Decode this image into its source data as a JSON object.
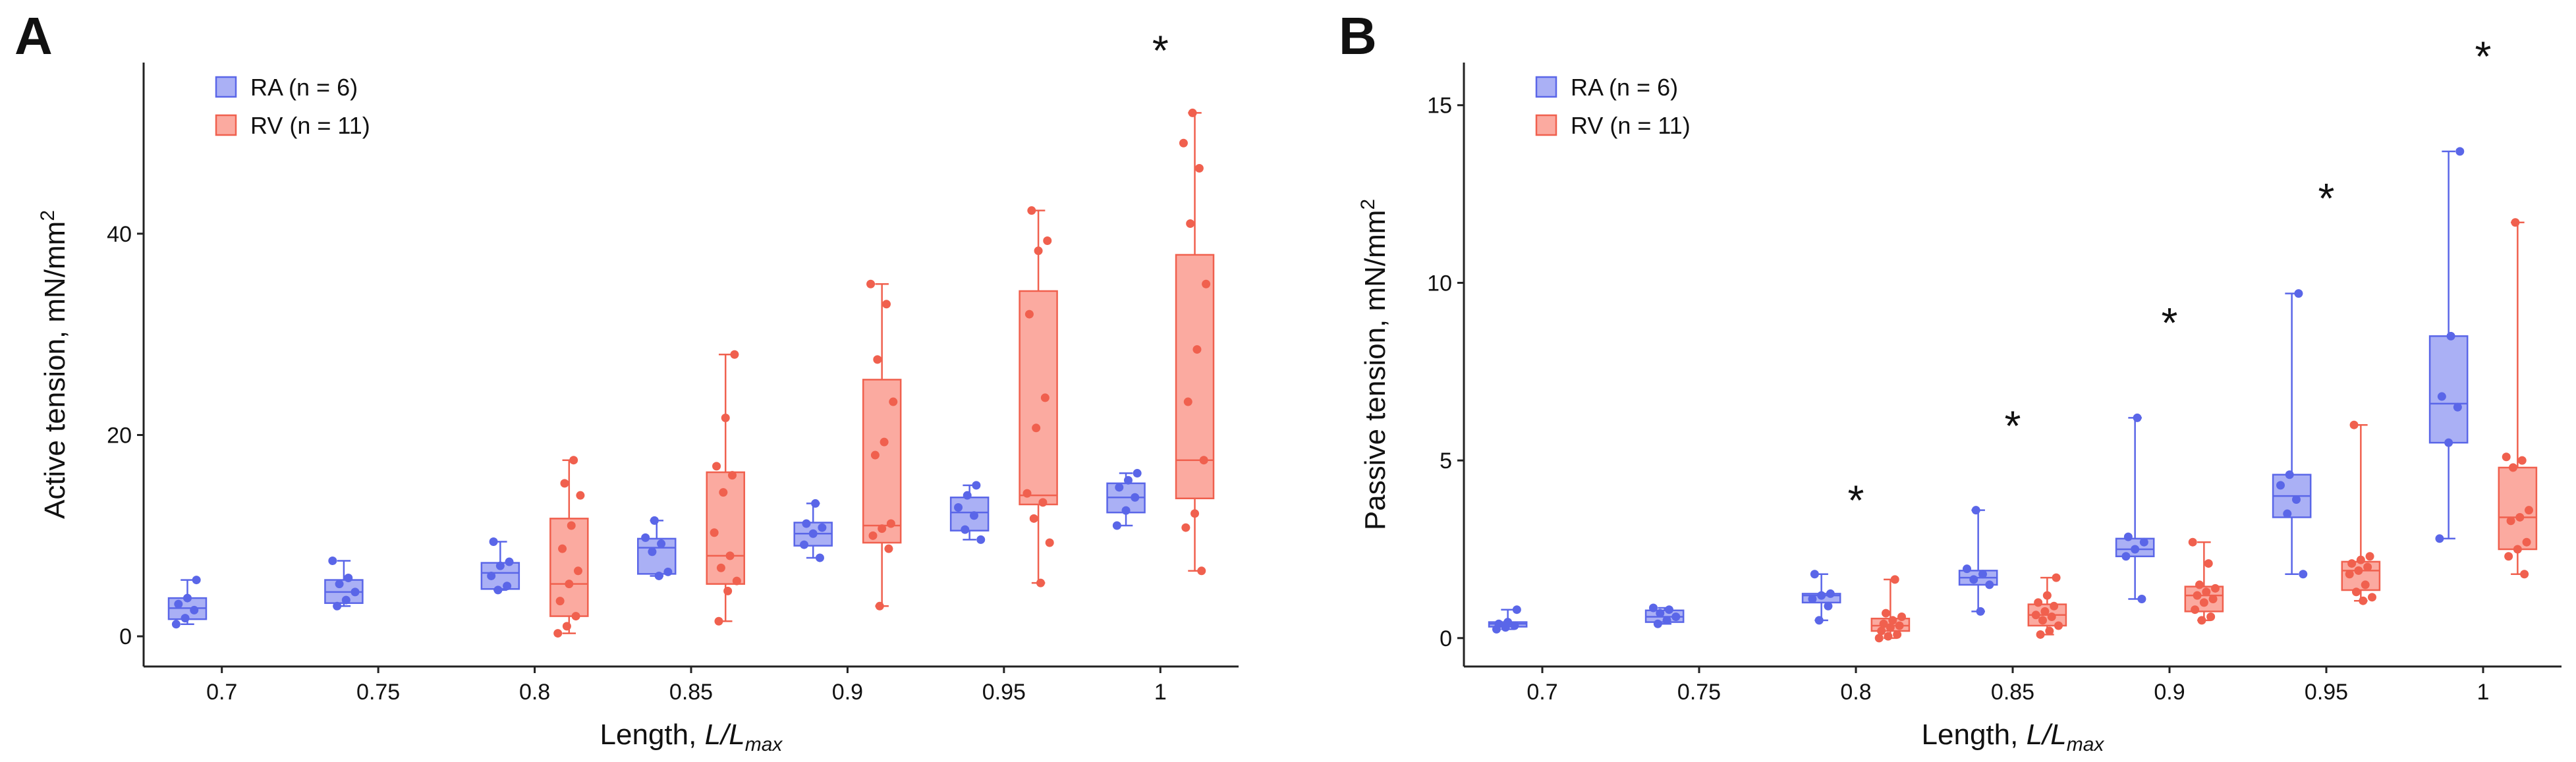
{
  "chart_data": [
    {
      "panel": "A",
      "type": "box",
      "ylabel": "Active tension, mN/mm",
      "ylabel_sup": "2",
      "xlabel": "Length, ",
      "xlabel_italic": "L/L",
      "xlabel_sub": "max",
      "ylim": [
        -3,
        57
      ],
      "yticks": [
        0,
        20,
        40
      ],
      "categories": [
        "0.7",
        "0.75",
        "0.8",
        "0.85",
        "0.9",
        "0.95",
        "1"
      ],
      "legend": [
        {
          "label": "RA (n = 6)",
          "fill": "#aab0f5",
          "stroke": "#5a66e8"
        },
        {
          "label": "RV (n = 11)",
          "fill": "#fbaaa0",
          "stroke": "#f0604e"
        }
      ],
      "significance": [
        {
          "category": "1",
          "label": "*",
          "y": 59
        }
      ],
      "series": [
        {
          "name": "RA (n = 6)",
          "boxes": [
            {
              "q1": 1.7,
              "med": 2.8,
              "q3": 3.8,
              "min": 1.2,
              "max": 5.6,
              "points": [
                1.2,
                1.8,
                2.6,
                3.2,
                3.8,
                5.6
              ]
            },
            {
              "q1": 3.3,
              "med": 4.4,
              "q3": 5.6,
              "min": 3.0,
              "max": 7.5,
              "points": [
                3.0,
                3.6,
                4.4,
                5.2,
                5.8,
                7.5
              ]
            },
            {
              "q1": 4.7,
              "med": 6.3,
              "q3": 7.3,
              "min": 4.6,
              "max": 9.4,
              "points": [
                4.6,
                5.0,
                6.0,
                7.0,
                7.4,
                9.4
              ]
            },
            {
              "q1": 6.2,
              "med": 8.8,
              "q3": 9.7,
              "min": 6.0,
              "max": 11.5,
              "points": [
                6.0,
                6.4,
                8.4,
                9.2,
                9.8,
                11.5
              ]
            },
            {
              "q1": 9.0,
              "med": 10.2,
              "q3": 11.3,
              "min": 7.8,
              "max": 13.2,
              "points": [
                7.8,
                9.1,
                10.2,
                10.8,
                11.2,
                13.2
              ]
            },
            {
              "q1": 10.5,
              "med": 12.3,
              "q3": 13.8,
              "min": 9.6,
              "max": 15.0,
              "points": [
                9.6,
                10.6,
                12.0,
                12.8,
                14.0,
                15.0
              ]
            },
            {
              "q1": 12.3,
              "med": 13.8,
              "q3": 15.2,
              "min": 11.0,
              "max": 16.2,
              "points": [
                11.0,
                12.5,
                13.8,
                14.8,
                15.5,
                16.2
              ]
            }
          ]
        },
        {
          "name": "RV (n = 11)",
          "boxes": [
            null,
            null,
            {
              "q1": 2.0,
              "med": 5.2,
              "q3": 11.7,
              "min": 0.3,
              "max": 17.5,
              "points": [
                0.3,
                1.0,
                2.0,
                3.5,
                5.2,
                6.5,
                8.7,
                11.0,
                14.0,
                15.2,
                17.5
              ]
            },
            {
              "q1": 5.2,
              "med": 8.0,
              "q3": 16.3,
              "min": 1.5,
              "max": 28.0,
              "points": [
                1.5,
                4.5,
                5.5,
                6.8,
                8.0,
                10.3,
                14.3,
                16.0,
                16.9,
                21.7,
                28.0
              ]
            },
            {
              "q1": 9.3,
              "med": 11.0,
              "q3": 25.5,
              "min": 3.0,
              "max": 35.0,
              "points": [
                3.0,
                8.7,
                10.0,
                10.7,
                11.2,
                18.0,
                19.3,
                23.3,
                27.5,
                33.0,
                35.0
              ]
            },
            {
              "q1": 13.1,
              "med": 14.0,
              "q3": 34.3,
              "min": 5.3,
              "max": 42.3,
              "points": [
                5.3,
                9.3,
                11.7,
                13.3,
                14.2,
                20.7,
                23.7,
                32.0,
                38.3,
                39.3,
                42.3
              ]
            },
            {
              "q1": 13.7,
              "med": 17.5,
              "q3": 37.9,
              "min": 6.5,
              "max": 52.0,
              "points": [
                6.5,
                10.8,
                12.2,
                17.5,
                23.3,
                28.5,
                35.0,
                41.0,
                46.5,
                49.0,
                52.0
              ]
            }
          ]
        }
      ]
    },
    {
      "panel": "B",
      "type": "box",
      "ylabel": "Passive tension, mN/mm",
      "ylabel_sup": "2",
      "xlabel": "Length, ",
      "xlabel_italic": "L/L",
      "xlabel_sub": "max",
      "ylim": [
        -0.8,
        16.2
      ],
      "yticks": [
        0,
        5,
        10,
        15
      ],
      "categories": [
        "0.7",
        "0.75",
        "0.8",
        "0.85",
        "0.9",
        "0.95",
        "1"
      ],
      "legend": [
        {
          "label": "RA (n = 6)",
          "fill": "#aab0f5",
          "stroke": "#5a66e8"
        },
        {
          "label": "RV (n = 11)",
          "fill": "#fbaaa0",
          "stroke": "#f0604e"
        }
      ],
      "significance": [
        {
          "category": "0.8",
          "label": "*",
          "y": 4.1
        },
        {
          "category": "0.85",
          "label": "*",
          "y": 6.2
        },
        {
          "category": "0.9",
          "label": "*",
          "y": 9.1
        },
        {
          "category": "0.95",
          "label": "*",
          "y": 12.6
        },
        {
          "category": "1",
          "label": "*",
          "y": 16.6
        }
      ],
      "series": [
        {
          "name": "RA (n = 6)",
          "boxes": [
            {
              "q1": 0.32,
              "med": 0.4,
              "q3": 0.45,
              "min": 0.25,
              "max": 0.8,
              "points": [
                0.25,
                0.3,
                0.35,
                0.4,
                0.45,
                0.8
              ]
            },
            {
              "q1": 0.45,
              "med": 0.6,
              "q3": 0.78,
              "min": 0.4,
              "max": 0.85,
              "points": [
                0.4,
                0.5,
                0.6,
                0.7,
                0.8,
                0.85
              ]
            },
            {
              "q1": 1.0,
              "med": 1.2,
              "q3": 1.25,
              "min": 0.5,
              "max": 1.8,
              "points": [
                0.5,
                0.9,
                1.1,
                1.2,
                1.25,
                1.8
              ]
            },
            {
              "q1": 1.5,
              "med": 1.7,
              "q3": 1.9,
              "min": 0.75,
              "max": 3.6,
              "points": [
                0.75,
                1.5,
                1.65,
                1.8,
                1.95,
                3.6
              ]
            },
            {
              "q1": 2.3,
              "med": 2.5,
              "q3": 2.8,
              "min": 1.1,
              "max": 6.2,
              "points": [
                1.1,
                2.3,
                2.5,
                2.7,
                2.85,
                6.2
              ]
            },
            {
              "q1": 3.4,
              "med": 4.0,
              "q3": 4.6,
              "min": 1.8,
              "max": 9.7,
              "points": [
                1.8,
                3.5,
                3.9,
                4.3,
                4.6,
                9.7
              ]
            },
            {
              "q1": 5.5,
              "med": 6.6,
              "q3": 8.5,
              "min": 2.8,
              "max": 13.7,
              "points": [
                2.8,
                5.5,
                6.5,
                6.8,
                8.5,
                13.7
              ]
            }
          ]
        },
        {
          "name": "RV (n = 11)",
          "boxes": [
            null,
            null,
            {
              "q1": 0.2,
              "med": 0.35,
              "q3": 0.55,
              "min": 0.0,
              "max": 1.65,
              "points": [
                0.0,
                0.05,
                0.1,
                0.2,
                0.3,
                0.35,
                0.4,
                0.5,
                0.6,
                0.7,
                1.65
              ]
            },
            {
              "q1": 0.35,
              "med": 0.65,
              "q3": 0.95,
              "min": 0.1,
              "max": 1.7,
              "points": [
                0.1,
                0.2,
                0.35,
                0.5,
                0.6,
                0.65,
                0.75,
                0.9,
                1.0,
                1.2,
                1.7
              ]
            },
            {
              "q1": 0.75,
              "med": 1.2,
              "q3": 1.45,
              "min": 0.5,
              "max": 2.7,
              "points": [
                0.5,
                0.6,
                0.8,
                1.0,
                1.1,
                1.2,
                1.3,
                1.4,
                1.5,
                2.1,
                2.7
              ]
            },
            {
              "q1": 1.35,
              "med": 1.9,
              "q3": 2.15,
              "min": 1.05,
              "max": 6.0,
              "points": [
                1.05,
                1.15,
                1.3,
                1.5,
                1.8,
                1.9,
                2.0,
                2.1,
                2.2,
                2.3,
                6.0
              ]
            },
            {
              "q1": 2.5,
              "med": 3.4,
              "q3": 4.8,
              "min": 1.8,
              "max": 11.7,
              "points": [
                1.8,
                2.3,
                2.5,
                2.7,
                3.3,
                3.4,
                3.6,
                4.8,
                5.0,
                5.1,
                11.7
              ]
            }
          ]
        }
      ]
    }
  ]
}
